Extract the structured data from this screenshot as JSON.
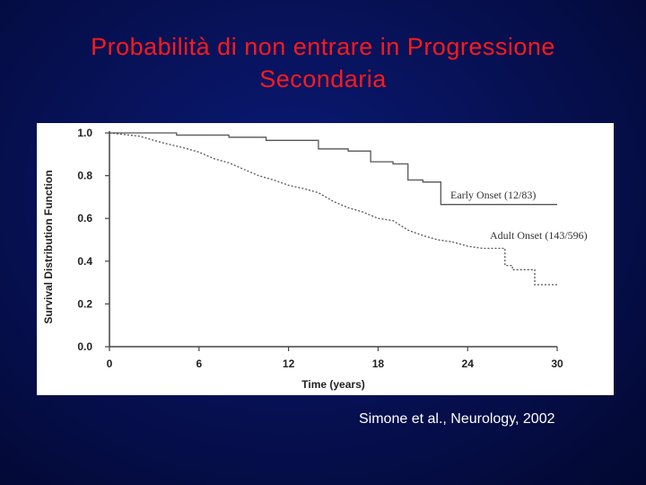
{
  "slide": {
    "title_line1": "Probabilità di non entrare in Progressione",
    "title_line2": "Secondaria",
    "citation": "Simone et al., Neurology, 2002",
    "colors": {
      "title": "#ff1a1a",
      "background": "#061050",
      "citation": "#ffffff"
    }
  },
  "chart_data": {
    "type": "line",
    "title": "",
    "xlabel": "Time (years)",
    "ylabel": "Survival Distribution Function",
    "xlim": [
      0,
      30
    ],
    "ylim": [
      0,
      1.0
    ],
    "x_ticks": [
      "0",
      "6",
      "12",
      "18",
      "24",
      "30"
    ],
    "y_ticks": [
      "0.0",
      "0.2",
      "0.4",
      "0.6",
      "0.8",
      "1.0"
    ],
    "grid": false,
    "series": [
      {
        "name": "Early Onset (12/83)",
        "style": "solid",
        "points": [
          [
            0,
            1.0
          ],
          [
            4.5,
            1.0
          ],
          [
            4.5,
            0.99
          ],
          [
            8,
            0.99
          ],
          [
            8,
            0.98
          ],
          [
            10.5,
            0.98
          ],
          [
            10.5,
            0.965
          ],
          [
            14,
            0.965
          ],
          [
            14,
            0.925
          ],
          [
            16,
            0.925
          ],
          [
            16,
            0.915
          ],
          [
            17.5,
            0.915
          ],
          [
            17.5,
            0.865
          ],
          [
            19,
            0.865
          ],
          [
            19,
            0.855
          ],
          [
            20,
            0.855
          ],
          [
            20,
            0.78
          ],
          [
            21,
            0.78
          ],
          [
            21,
            0.77
          ],
          [
            22.2,
            0.77
          ],
          [
            22.2,
            0.665
          ],
          [
            30,
            0.665
          ]
        ]
      },
      {
        "name": "Adult Onset (143/596)",
        "style": "dotted",
        "points": [
          [
            0,
            1.0
          ],
          [
            2,
            0.985
          ],
          [
            3.5,
            0.955
          ],
          [
            5,
            0.93
          ],
          [
            6,
            0.91
          ],
          [
            7,
            0.88
          ],
          [
            8,
            0.86
          ],
          [
            9,
            0.83
          ],
          [
            10,
            0.8
          ],
          [
            11,
            0.78
          ],
          [
            12,
            0.755
          ],
          [
            13,
            0.74
          ],
          [
            14,
            0.72
          ],
          [
            15,
            0.68
          ],
          [
            16,
            0.65
          ],
          [
            17,
            0.63
          ],
          [
            18,
            0.6
          ],
          [
            19,
            0.59
          ],
          [
            20,
            0.545
          ],
          [
            21,
            0.52
          ],
          [
            22,
            0.5
          ],
          [
            23,
            0.49
          ],
          [
            24,
            0.47
          ],
          [
            25,
            0.46
          ],
          [
            26.5,
            0.46
          ],
          [
            26.5,
            0.38
          ],
          [
            27,
            0.38
          ],
          [
            27,
            0.36
          ],
          [
            28.5,
            0.36
          ],
          [
            28.5,
            0.29
          ],
          [
            30,
            0.29
          ]
        ]
      }
    ],
    "legend_placement": "inline-right"
  }
}
